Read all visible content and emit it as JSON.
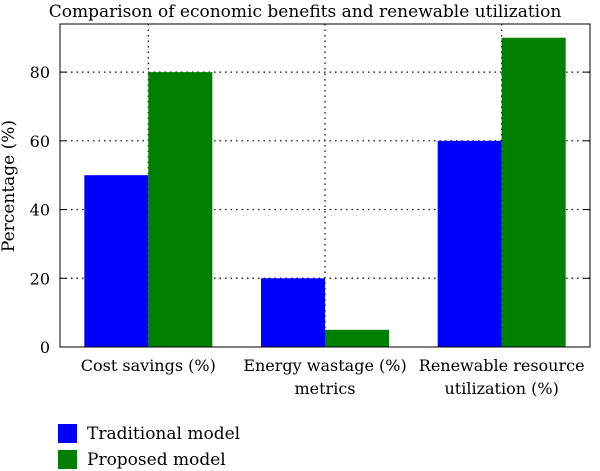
{
  "chart_data": {
    "type": "bar",
    "title": "Comparison of economic benefits and renewable utilization",
    "xlabel": "",
    "ylabel": "Percentage (%)",
    "ylim": [
      0,
      94
    ],
    "yticks": [
      0,
      20,
      40,
      60,
      80
    ],
    "grid": true,
    "legend_position": "bottom-left",
    "categories": [
      [
        "Cost savings (%)"
      ],
      [
        "Energy wastage (%)",
        "metrics"
      ],
      [
        "Renewable resource",
        "utilization (%)"
      ]
    ],
    "series": [
      {
        "name": "Traditional model",
        "color": "#0000ff",
        "values": [
          50,
          20,
          60
        ]
      },
      {
        "name": "Proposed model",
        "color": "#008000",
        "values": [
          80,
          5,
          90
        ]
      }
    ]
  }
}
